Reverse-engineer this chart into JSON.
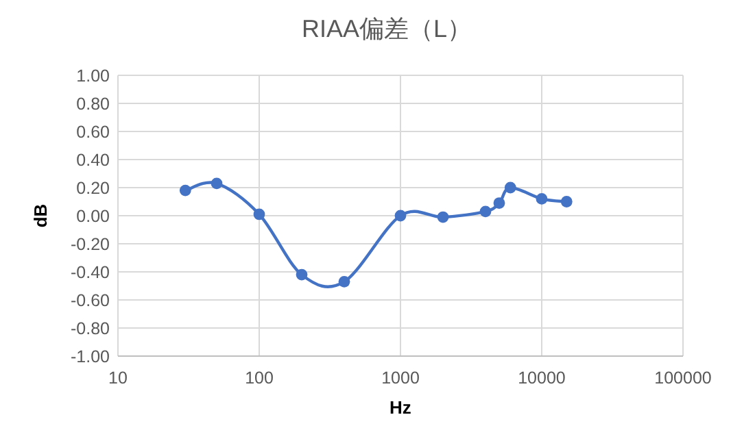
{
  "chart_data": {
    "type": "line",
    "title": "RIAA偏差（L）",
    "xlabel": "Hz",
    "ylabel": "dB",
    "log": "x",
    "grid": true,
    "marker": "circle",
    "line_style": "solid",
    "xlim": [
      10,
      100000
    ],
    "xticks": [
      10,
      100,
      1000,
      10000,
      100000
    ],
    "ylim": [
      -1,
      1
    ],
    "yticks": [
      {
        "value": -1,
        "label": "-1.00"
      },
      {
        "value": -0.8,
        "label": "-0.80"
      },
      {
        "value": -0.6,
        "label": "-0.60"
      },
      {
        "value": -0.4,
        "label": "-0.40"
      },
      {
        "value": -0.2,
        "label": "-0.20"
      },
      {
        "value": 0,
        "label": "0.00"
      },
      {
        "value": 0.2,
        "label": "0.20"
      },
      {
        "value": 0.4,
        "label": "0.40"
      },
      {
        "value": 0.6,
        "label": "0.60"
      },
      {
        "value": 0.8,
        "label": "0.80"
      },
      {
        "value": 1,
        "label": "1.00"
      }
    ],
    "x": [
      30,
      50,
      100,
      200,
      400,
      1000,
      2000,
      4000,
      5000,
      6000,
      10000,
      15000
    ],
    "series": [
      {
        "color": "#4472c4",
        "values": [
          0.18,
          0.23,
          0.01,
          -0.42,
          -0.47,
          0.0,
          -0.01,
          0.03,
          0.09,
          0.2,
          0.12,
          0.1
        ]
      }
    ]
  }
}
